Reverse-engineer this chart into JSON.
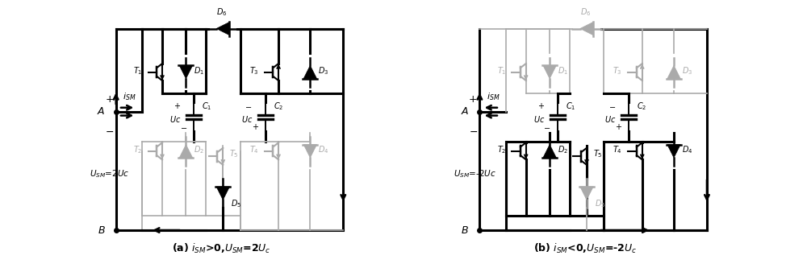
{
  "fig_width": 10.0,
  "fig_height": 3.33,
  "dpi": 100,
  "caption_a": "(a) $i_{SM}$>0,$U_{SM}$=2$U_c$",
  "caption_b": "(b) $i_{SM}$<0,$U_{SM}$=-2$U_c$",
  "active": "#000000",
  "inactive": "#aaaaaa",
  "lw_active": 2.2,
  "lw_inactive": 1.2
}
